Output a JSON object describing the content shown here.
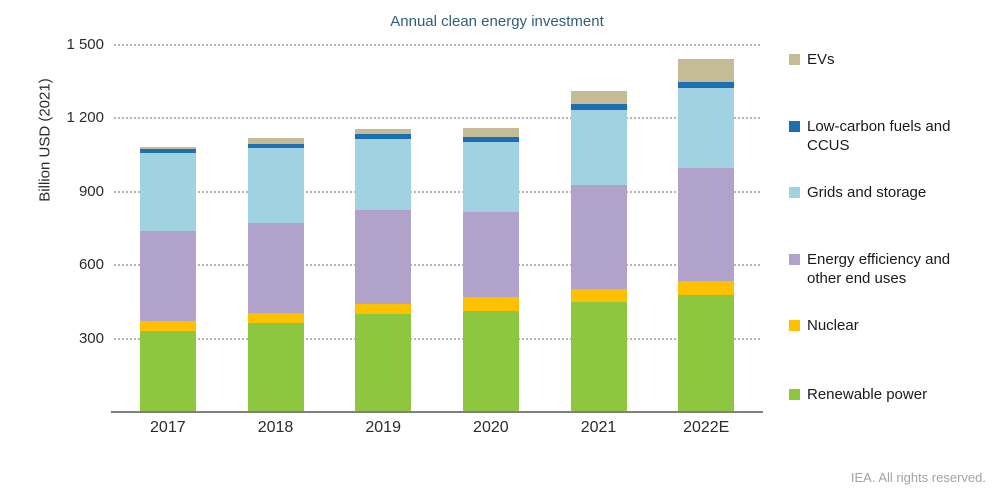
{
  "title": "Annual clean energy investment",
  "footer": "IEA. All rights reserved.",
  "y_axis": {
    "label": "Billion USD (2021)",
    "ticks": [
      {
        "label": "1 500",
        "value": 1500
      },
      {
        "label": "1 200",
        "value": 1200
      },
      {
        "label": "900",
        "value": 900
      },
      {
        "label": "600",
        "value": 600
      },
      {
        "label": "300",
        "value": 300
      }
    ]
  },
  "chart_data": {
    "type": "bar",
    "stacked": true,
    "title": "Annual clean energy investment",
    "ylabel": "Billion USD (2021)",
    "ylim": [
      0,
      1500
    ],
    "grid": "horizontal-dotted",
    "legend_position": "right",
    "categories": [
      "2017",
      "2018",
      "2019",
      "2020",
      "2021",
      "2022E"
    ],
    "series": [
      {
        "name": "Renewable power",
        "color": "#8dc63f",
        "values": [
          325,
          358,
          395,
          410,
          445,
          475
        ]
      },
      {
        "name": "Nuclear",
        "color": "#ffc000",
        "values": [
          42,
          44,
          41,
          54,
          52,
          55
        ]
      },
      {
        "name": "Energy efficiency and other end uses",
        "color": "#b1a2cb",
        "values": [
          370,
          368,
          385,
          348,
          425,
          465
        ]
      },
      {
        "name": "Grids and storage",
        "color": "#a1d2e2",
        "values": [
          318,
          305,
          291,
          288,
          308,
          326
        ]
      },
      {
        "name": "Low-carbon fuels and CCUS",
        "color": "#1b6fb2",
        "values": [
          15,
          18,
          22,
          19,
          25,
          23
        ]
      },
      {
        "name": "EVs",
        "color": "#c5bb95",
        "values": [
          8,
          22,
          20,
          36,
          52,
          95
        ]
      }
    ],
    "totals": [
      1078,
      1115,
      1154,
      1155,
      1307,
      1439
    ],
    "legend_top_to_bottom": [
      "EVs",
      "Low-carbon fuels and CCUS",
      "Grids and storage",
      "Energy efficiency and other end uses",
      "Nuclear",
      "Renewable power"
    ]
  }
}
